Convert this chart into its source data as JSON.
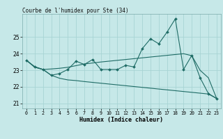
{
  "title": "Courbe de l'humidex pour Ste (34)",
  "xlabel": "Humidex (Indice chaleur)",
  "bg_color": "#c6e8e8",
  "line_color": "#1e6b65",
  "grid_color": "#a8d4d4",
  "xlim": [
    -0.5,
    23.5
  ],
  "ylim": [
    20.7,
    26.4
  ],
  "yticks": [
    21,
    22,
    23,
    24,
    25
  ],
  "xticks": [
    0,
    1,
    2,
    3,
    4,
    5,
    6,
    7,
    8,
    9,
    10,
    11,
    12,
    13,
    14,
    15,
    16,
    17,
    18,
    19,
    20,
    21,
    22,
    23
  ],
  "main_x": [
    0,
    1,
    2,
    3,
    4,
    5,
    6,
    7,
    8,
    9,
    10,
    11,
    12,
    13,
    14,
    15,
    16,
    17,
    18,
    19,
    20,
    21,
    22,
    23
  ],
  "main_y": [
    23.6,
    23.2,
    23.05,
    22.7,
    22.8,
    23.05,
    23.55,
    23.35,
    23.65,
    23.05,
    23.05,
    23.05,
    23.3,
    23.2,
    24.3,
    24.9,
    24.6,
    25.3,
    26.1,
    23.05,
    23.9,
    22.55,
    21.6,
    21.3
  ],
  "upper_x": [
    0,
    1,
    2,
    3,
    4,
    5,
    6,
    7,
    8,
    9,
    10,
    11,
    12,
    13,
    14,
    15,
    16,
    17,
    18,
    19,
    20,
    21,
    22,
    23
  ],
  "upper_y": [
    23.6,
    23.22,
    23.05,
    23.08,
    23.12,
    23.18,
    23.28,
    23.38,
    23.44,
    23.5,
    23.55,
    23.6,
    23.65,
    23.7,
    23.75,
    23.8,
    23.85,
    23.9,
    23.95,
    24.0,
    23.88,
    23.0,
    22.55,
    21.3
  ],
  "lower_x": [
    0,
    1,
    2,
    3,
    4,
    5,
    6,
    7,
    8,
    9,
    10,
    11,
    12,
    13,
    14,
    15,
    16,
    17,
    18,
    19,
    20,
    21,
    22,
    23
  ],
  "lower_y": [
    23.6,
    23.18,
    23.05,
    22.7,
    22.52,
    22.42,
    22.38,
    22.32,
    22.27,
    22.22,
    22.17,
    22.12,
    22.07,
    22.02,
    21.97,
    21.92,
    21.87,
    21.82,
    21.77,
    21.72,
    21.67,
    21.62,
    21.57,
    21.3
  ]
}
